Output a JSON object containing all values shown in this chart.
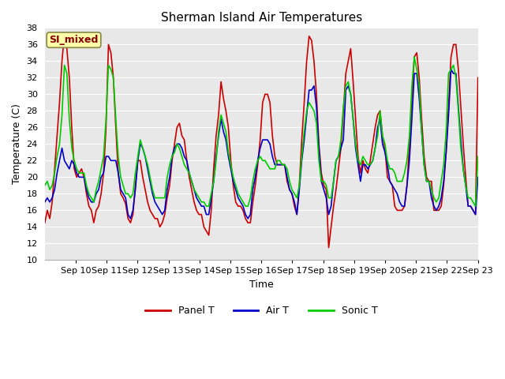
{
  "title": "Sherman Island Air Temperatures",
  "xlabel": "Time",
  "ylabel": "Temperature (C)",
  "ylim": [
    10,
    38
  ],
  "yticks": [
    10,
    12,
    14,
    16,
    18,
    20,
    22,
    24,
    26,
    28,
    30,
    32,
    34,
    36,
    38
  ],
  "xtick_labels": [
    "Sep 10",
    "Sep 11",
    "Sep 12",
    "Sep 13",
    "Sep 14",
    "Sep 15",
    "Sep 16",
    "Sep 17",
    "Sep 18",
    "Sep 19",
    "Sep 20",
    "Sep 21",
    "Sep 22",
    "Sep 23"
  ],
  "panel_color": "#cc0000",
  "air_color": "#0000cc",
  "sonic_color": "#00cc00",
  "plot_bg": "#e8e8e8",
  "fig_bg": "#ffffff",
  "grid_color": "#ffffff",
  "label_box_color": "#ffffaa",
  "label_box_edge": "#888844",
  "label_text": "SI_mixed",
  "legend_labels": [
    "Panel T",
    "Air T",
    "Sonic T"
  ],
  "title_fontsize": 11,
  "axis_fontsize": 9,
  "tick_fontsize": 8,
  "line_width": 1.2,
  "panel_t": [
    14.5,
    16.0,
    15.0,
    17.0,
    21.0,
    25.0,
    29.0,
    34.0,
    37.2,
    35.5,
    32.0,
    26.0,
    21.0,
    20.0,
    20.5,
    21.0,
    20.0,
    18.0,
    16.5,
    16.0,
    14.5,
    16.0,
    16.5,
    18.0,
    20.5,
    26.0,
    36.0,
    35.0,
    32.0,
    26.0,
    20.5,
    18.0,
    17.5,
    16.8,
    15.0,
    14.5,
    15.5,
    19.0,
    22.0,
    22.0,
    20.0,
    18.5,
    17.0,
    16.0,
    15.5,
    15.0,
    15.0,
    14.0,
    14.5,
    15.5,
    17.5,
    19.0,
    22.0,
    24.0,
    26.0,
    26.5,
    25.0,
    24.5,
    22.0,
    20.0,
    18.5,
    17.0,
    16.0,
    15.5,
    15.5,
    14.0,
    13.5,
    13.0,
    16.0,
    21.0,
    25.0,
    27.5,
    31.5,
    29.5,
    28.0,
    26.0,
    22.0,
    19.0,
    17.0,
    16.5,
    16.5,
    16.0,
    15.0,
    14.5,
    14.5,
    17.0,
    19.0,
    21.5,
    24.5,
    29.0,
    30.0,
    30.0,
    29.0,
    25.0,
    22.5,
    21.5,
    21.5,
    21.5,
    21.5,
    19.5,
    18.5,
    18.0,
    16.5,
    15.5,
    19.0,
    24.5,
    29.0,
    34.0,
    37.0,
    36.5,
    34.0,
    30.0,
    24.0,
    20.5,
    19.0,
    18.5,
    11.5,
    14.0,
    16.5,
    18.5,
    21.0,
    23.5,
    28.0,
    32.5,
    34.0,
    35.5,
    31.5,
    27.0,
    22.5,
    20.5,
    22.0,
    21.0,
    20.5,
    22.0,
    24.0,
    26.0,
    27.5,
    28.0,
    25.0,
    23.5,
    20.0,
    19.5,
    19.0,
    16.5,
    16.0,
    16.0,
    16.0,
    16.5,
    19.0,
    24.0,
    29.5,
    34.5,
    35.0,
    32.0,
    27.0,
    22.5,
    20.0,
    19.5,
    19.5,
    16.0,
    16.0,
    16.0,
    16.5,
    19.0,
    23.0,
    28.5,
    34.5,
    36.0,
    36.0,
    33.0,
    28.5,
    24.0,
    20.0,
    16.5,
    16.5,
    16.0,
    15.5,
    32.0
  ],
  "air_t": [
    17.0,
    17.5,
    17.0,
    17.5,
    18.5,
    20.5,
    22.0,
    23.5,
    22.0,
    21.5,
    21.0,
    22.0,
    21.5,
    20.5,
    20.0,
    20.0,
    20.0,
    18.5,
    17.5,
    17.0,
    17.0,
    18.0,
    18.5,
    20.0,
    20.5,
    22.5,
    22.5,
    22.0,
    22.0,
    22.0,
    20.5,
    18.5,
    18.0,
    17.5,
    15.5,
    15.0,
    16.0,
    18.5,
    22.0,
    24.0,
    23.5,
    22.5,
    21.0,
    19.5,
    18.0,
    17.0,
    16.5,
    16.0,
    15.5,
    16.0,
    18.5,
    20.0,
    22.5,
    23.5,
    24.0,
    24.0,
    23.5,
    22.5,
    22.0,
    20.5,
    19.5,
    18.5,
    17.5,
    17.0,
    16.5,
    16.5,
    15.5,
    15.5,
    17.5,
    19.5,
    22.5,
    25.0,
    27.0,
    25.5,
    24.5,
    22.5,
    21.0,
    19.5,
    18.5,
    17.5,
    17.0,
    16.5,
    15.5,
    15.0,
    15.5,
    18.5,
    20.0,
    22.0,
    23.5,
    24.5,
    24.5,
    24.5,
    24.0,
    22.5,
    21.5,
    21.5,
    21.5,
    21.5,
    21.5,
    20.0,
    18.5,
    18.0,
    17.0,
    15.5,
    18.5,
    22.0,
    24.5,
    27.5,
    30.5,
    30.5,
    31.0,
    28.5,
    23.5,
    19.5,
    18.5,
    17.5,
    15.5,
    16.5,
    19.5,
    22.0,
    22.5,
    23.5,
    24.5,
    30.5,
    31.0,
    30.0,
    27.0,
    23.5,
    21.5,
    19.5,
    21.5,
    21.5,
    21.0,
    21.5,
    22.0,
    23.5,
    26.0,
    27.0,
    24.0,
    23.0,
    21.5,
    19.5,
    19.0,
    18.5,
    18.0,
    17.0,
    16.5,
    16.5,
    19.0,
    22.0,
    27.0,
    32.5,
    32.5,
    29.5,
    25.5,
    21.5,
    19.5,
    19.5,
    17.5,
    16.5,
    16.0,
    16.5,
    17.5,
    19.5,
    23.0,
    27.5,
    33.0,
    32.5,
    32.5,
    28.5,
    24.5,
    21.0,
    19.0,
    16.5,
    16.5,
    16.0,
    15.5,
    20.0
  ],
  "sonic_t": [
    19.0,
    19.5,
    18.5,
    19.0,
    20.5,
    22.5,
    24.0,
    27.5,
    33.5,
    32.5,
    27.0,
    23.5,
    22.0,
    21.0,
    20.5,
    20.5,
    20.5,
    19.0,
    18.0,
    17.5,
    17.0,
    18.5,
    19.5,
    21.0,
    22.5,
    27.0,
    33.5,
    33.0,
    32.0,
    27.0,
    22.5,
    20.0,
    19.0,
    18.0,
    18.0,
    17.5,
    18.0,
    20.5,
    22.5,
    24.5,
    23.5,
    22.5,
    21.5,
    20.0,
    18.5,
    17.5,
    17.5,
    17.5,
    17.5,
    17.5,
    20.0,
    21.5,
    22.5,
    23.0,
    24.0,
    23.5,
    22.5,
    21.5,
    21.0,
    20.5,
    19.5,
    18.5,
    18.0,
    17.5,
    17.0,
    17.0,
    16.5,
    16.5,
    18.0,
    19.5,
    22.0,
    25.5,
    27.5,
    26.5,
    25.5,
    23.0,
    21.5,
    20.0,
    19.0,
    18.0,
    17.5,
    17.0,
    16.5,
    16.5,
    17.5,
    19.5,
    21.0,
    22.0,
    22.5,
    22.0,
    22.0,
    21.5,
    21.0,
    21.0,
    21.0,
    22.0,
    22.0,
    21.5,
    21.5,
    21.0,
    19.5,
    18.5,
    18.0,
    17.5,
    19.0,
    22.5,
    25.5,
    28.0,
    29.0,
    28.5,
    28.0,
    26.5,
    22.0,
    19.5,
    19.5,
    19.0,
    17.5,
    17.5,
    19.5,
    22.0,
    22.5,
    24.5,
    28.5,
    31.0,
    31.5,
    30.0,
    27.0,
    24.0,
    22.0,
    21.5,
    22.5,
    22.0,
    21.5,
    21.5,
    22.0,
    23.5,
    25.0,
    28.0,
    25.0,
    24.0,
    22.0,
    21.0,
    21.0,
    20.5,
    19.5,
    19.5,
    19.5,
    20.5,
    22.0,
    25.0,
    31.0,
    34.5,
    33.0,
    31.0,
    25.5,
    21.5,
    19.5,
    19.5,
    18.5,
    17.5,
    17.0,
    17.5,
    19.5,
    21.5,
    25.5,
    32.5,
    33.0,
    33.5,
    32.0,
    28.0,
    23.5,
    21.0,
    19.0,
    17.5,
    17.5,
    17.0,
    16.5,
    22.5
  ]
}
